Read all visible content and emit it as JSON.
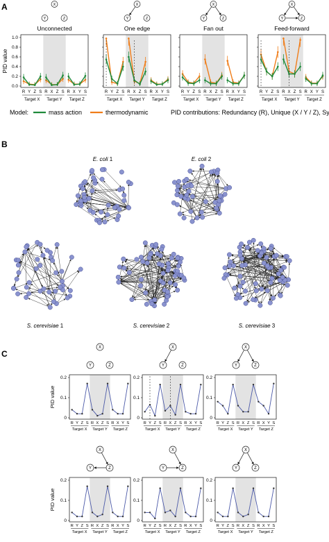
{
  "panel_labels": {
    "a": "A",
    "b": "B",
    "c": "C"
  },
  "node_letters": [
    "X",
    "Y",
    "Z"
  ],
  "ylabel": "PID value",
  "contrib_labels": [
    "R",
    "Y",
    "Z",
    "S",
    "R",
    "X",
    "Z",
    "S",
    "R",
    "X",
    "Y",
    "S"
  ],
  "target_labels": [
    "Target X",
    "Target Y",
    "Target Z"
  ],
  "a_titles": [
    "Unconnected",
    "One edge",
    "Fan out",
    "Feed-forward"
  ],
  "a_ticks": [
    "0.0",
    "0.2",
    "0.4",
    "0.6",
    "0.8",
    "1.0"
  ],
  "c_ticks": [
    "0",
    "0.1",
    "0.2"
  ],
  "legend": {
    "model_label": "Model:",
    "mass_action": "mass action",
    "thermodynamic": "thermodynamic",
    "pid_text": "PID contributions:   Redundancy (R), Unique (X / Y / Z), Synergy (S)"
  },
  "network_labels": [
    {
      "italic": "E. coli",
      "num": " 1"
    },
    {
      "italic": "E. coli",
      "num": " 2"
    },
    {
      "italic": "S. cerevisiae",
      "num": " 1"
    },
    {
      "italic": "S. cerevisiae",
      "num": " 2"
    },
    {
      "italic": "S. cerevisiae",
      "num": " 3"
    }
  ],
  "colors": {
    "mass_action": "#1f8a3b",
    "thermodynamic": "#f07d19",
    "pid_line": "#4b59a8",
    "node_fill": "#8a93cf",
    "node_stroke": "#4a5296",
    "shade": "#e3e3e3"
  },
  "chart_data": [
    {
      "type": "line",
      "panel": "A",
      "title": "Unconnected",
      "ylim": [
        0,
        1.0
      ],
      "series": [
        {
          "name": "mass action",
          "values": [
            0.18,
            0.03,
            0.02,
            0.2,
            0.18,
            0.02,
            0.03,
            0.22,
            0.2,
            0.03,
            0.04,
            0.21
          ]
        },
        {
          "name": "thermodynamic",
          "values": [
            0.1,
            0.04,
            0.03,
            0.14,
            0.12,
            0.03,
            0.03,
            0.15,
            0.13,
            0.04,
            0.04,
            0.13
          ]
        }
      ]
    },
    {
      "type": "line",
      "panel": "A",
      "title": "One edge",
      "ylim": [
        0,
        1.0
      ],
      "series": [
        {
          "name": "mass action",
          "values": [
            0.55,
            0.15,
            0.05,
            0.4,
            0.6,
            0.12,
            0.04,
            0.3,
            0.1,
            0.03,
            0.04,
            0.12
          ]
        },
        {
          "name": "thermodynamic",
          "values": [
            0.98,
            0.08,
            0.05,
            0.5,
            0.98,
            0.1,
            0.05,
            0.5,
            0.12,
            0.04,
            0.04,
            0.14
          ]
        }
      ]
    },
    {
      "type": "line",
      "panel": "A",
      "title": "Fan out",
      "ylim": [
        0,
        1.0
      ],
      "series": [
        {
          "name": "mass action",
          "values": [
            0.18,
            0.06,
            0.05,
            0.12,
            0.12,
            0.05,
            0.05,
            0.2,
            0.12,
            0.05,
            0.05,
            0.22
          ]
        },
        {
          "name": "thermodynamic",
          "values": [
            0.25,
            0.08,
            0.06,
            0.2,
            0.55,
            0.08,
            0.06,
            0.22,
            0.52,
            0.08,
            0.06,
            0.22
          ]
        }
      ]
    },
    {
      "type": "line",
      "panel": "A",
      "title": "Feed-forward",
      "ylim": [
        0,
        1.0
      ],
      "series": [
        {
          "name": "mass action",
          "values": [
            0.55,
            0.3,
            0.2,
            0.4,
            0.55,
            0.25,
            0.25,
            0.4,
            0.15,
            0.05,
            0.05,
            0.22
          ]
        },
        {
          "name": "thermodynamic",
          "values": [
            0.65,
            0.3,
            0.2,
            0.7,
            0.98,
            0.3,
            0.25,
            0.95,
            0.18,
            0.06,
            0.06,
            0.2
          ]
        }
      ]
    },
    {
      "type": "line",
      "panel": "C",
      "ylim": [
        0,
        0.2
      ],
      "series": [
        {
          "values": [
            0.04,
            0.02,
            0.02,
            0.17,
            0.04,
            0.01,
            0.02,
            0.17,
            0.04,
            0.02,
            0.02,
            0.17
          ]
        }
      ]
    },
    {
      "type": "line",
      "panel": "C",
      "ylim": [
        0,
        0.2
      ],
      "series": [
        {
          "values": [
            0.03,
            0.065,
            0.01,
            0.165,
            0.035,
            0.06,
            0.015,
            0.165,
            0.03,
            0.02,
            0.02,
            0.165
          ]
        }
      ]
    },
    {
      "type": "line",
      "panel": "C",
      "ylim": [
        0,
        0.2
      ],
      "series": [
        {
          "values": [
            0.08,
            0.06,
            0.02,
            0.165,
            0.06,
            0.03,
            0.03,
            0.165,
            0.08,
            0.06,
            0.02,
            0.17
          ]
        }
      ]
    },
    {
      "type": "line",
      "panel": "C",
      "ylim": [
        0,
        0.2
      ],
      "series": [
        {
          "values": [
            0.04,
            0.02,
            0.02,
            0.17,
            0.04,
            0.02,
            0.03,
            0.17,
            0.04,
            0.02,
            0.02,
            0.17
          ]
        }
      ]
    },
    {
      "type": "line",
      "panel": "C",
      "ylim": [
        0,
        0.2
      ],
      "series": [
        {
          "values": [
            0.04,
            0.04,
            0.01,
            0.16,
            0.04,
            0.05,
            0.02,
            0.16,
            0.04,
            0.02,
            0.02,
            0.16
          ]
        }
      ]
    },
    {
      "type": "line",
      "panel": "C",
      "ylim": [
        0,
        0.2
      ],
      "series": [
        {
          "values": [
            0.04,
            0.02,
            0.02,
            0.16,
            0.04,
            0.02,
            0.03,
            0.16,
            0.04,
            0.02,
            0.02,
            0.16
          ]
        }
      ]
    }
  ]
}
